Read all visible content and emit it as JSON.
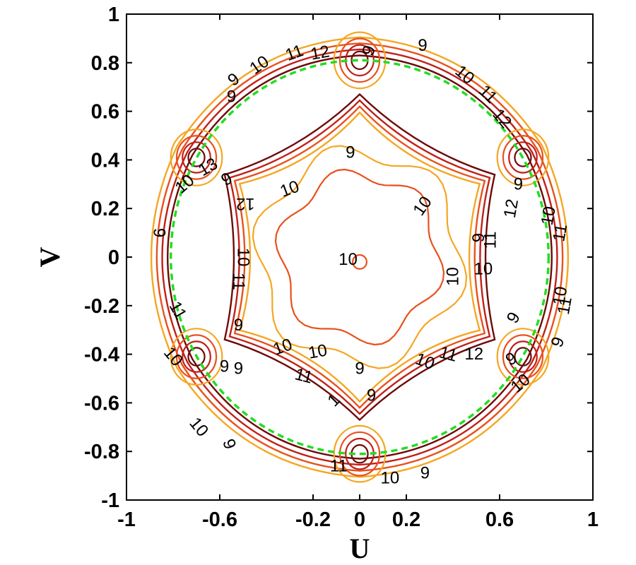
{
  "chart_data": {
    "type": "contour",
    "title": "",
    "xlabel": "U",
    "ylabel": "V",
    "xlim": [
      -1,
      1
    ],
    "ylim": [
      -1,
      1
    ],
    "x_ticks": [
      {
        "value": -1,
        "label": "-1"
      },
      {
        "value": -0.6,
        "label": "-0.6"
      },
      {
        "value": -0.2,
        "label": "-0.2"
      },
      {
        "value": 0,
        "label": "0"
      },
      {
        "value": 0.2,
        "label": "0.2"
      },
      {
        "value": 0.6,
        "label": "0.6"
      },
      {
        "value": 1,
        "label": "1"
      }
    ],
    "y_ticks": [
      {
        "value": -1,
        "label": "-1"
      },
      {
        "value": -0.8,
        "label": "-0.8"
      },
      {
        "value": -0.6,
        "label": "-0.6"
      },
      {
        "value": -0.4,
        "label": "-0.4"
      },
      {
        "value": -0.2,
        "label": "-0.2"
      },
      {
        "value": 0,
        "label": "0"
      },
      {
        "value": 0.2,
        "label": "0.2"
      },
      {
        "value": 0.4,
        "label": "0.4"
      },
      {
        "value": 0.6,
        "label": "0.6"
      },
      {
        "value": 0.8,
        "label": "0.8"
      },
      {
        "value": 1,
        "label": "1"
      }
    ],
    "grid": false,
    "legend": "none",
    "contour_levels": [
      {
        "level": 9,
        "color": "#f5a623"
      },
      {
        "level": 10,
        "color": "#e8511c"
      },
      {
        "level": 11,
        "color": "#c0201a"
      },
      {
        "level": 12,
        "color": "#6e0a0a"
      }
    ],
    "visible_region_circle": {
      "center": [
        0,
        0
      ],
      "radius": 0.81,
      "color": "#22dd22",
      "style": "dashed"
    },
    "hexagon_vertices_uv": [
      [
        0,
        0.81
      ],
      [
        0.7,
        0.41
      ],
      [
        0.7,
        -0.41
      ],
      [
        0,
        -0.81
      ],
      [
        -0.7,
        -0.41
      ],
      [
        -0.7,
        0.41
      ]
    ],
    "inner_contours": [
      {
        "level": 9,
        "max_radius": 0.47
      },
      {
        "level": 10,
        "max_radius": 0.37
      },
      {
        "level": 10,
        "center_closed_loop_radius": 0.03
      }
    ],
    "contour_labels": [
      {
        "text": "9",
        "u": 0.27,
        "v": 0.87,
        "rot": 0
      },
      {
        "text": "10",
        "u": -0.43,
        "v": 0.79,
        "rot": -35
      },
      {
        "text": "11",
        "u": -0.28,
        "v": 0.84,
        "rot": -20
      },
      {
        "text": "12",
        "u": -0.17,
        "v": 0.84,
        "rot": -10
      },
      {
        "text": "9",
        "u": -0.54,
        "v": 0.73,
        "rot": -38
      },
      {
        "text": "9",
        "u": 0.04,
        "v": 0.85,
        "rot": -70
      },
      {
        "text": "10",
        "u": 0.45,
        "v": 0.75,
        "rot": 40
      },
      {
        "text": "11",
        "u": 0.55,
        "v": 0.67,
        "rot": 45
      },
      {
        "text": "12",
        "u": 0.61,
        "v": 0.57,
        "rot": 50
      },
      {
        "text": "9",
        "u": -0.04,
        "v": 0.43,
        "rot": 0
      },
      {
        "text": "10",
        "u": -0.3,
        "v": 0.28,
        "rot": -20
      },
      {
        "text": "10",
        "u": 0.27,
        "v": 0.21,
        "rot": -55
      },
      {
        "text": "10",
        "u": -0.05,
        "v": -0.01,
        "rot": 0
      },
      {
        "text": "10",
        "u": -0.75,
        "v": 0.3,
        "rot": -40
      },
      {
        "text": "12",
        "u": -0.49,
        "v": 0.22,
        "rot": 180
      },
      {
        "text": "9",
        "u": -0.57,
        "v": 0.32,
        "rot": -30
      },
      {
        "text": "9",
        "u": -0.86,
        "v": 0.1,
        "rot": 90
      },
      {
        "text": "10",
        "u": -0.5,
        "v": 0.0,
        "rot": 90
      },
      {
        "text": "11",
        "u": -0.52,
        "v": -0.1,
        "rot": 90
      },
      {
        "text": "11",
        "u": -0.78,
        "v": -0.22,
        "rot": 60
      },
      {
        "text": "9",
        "u": -0.52,
        "v": -0.28,
        "rot": 0
      },
      {
        "text": "10",
        "u": -0.33,
        "v": -0.37,
        "rot": -20
      },
      {
        "text": "10",
        "u": -0.18,
        "v": -0.39,
        "rot": -10
      },
      {
        "text": "11",
        "u": -0.24,
        "v": -0.49,
        "rot": 15
      },
      {
        "text": "10",
        "u": -0.8,
        "v": -0.41,
        "rot": 50
      },
      {
        "text": "9",
        "u": -0.58,
        "v": -0.45,
        "rot": 0
      },
      {
        "text": "9",
        "u": -0.52,
        "v": -0.46,
        "rot": 0
      },
      {
        "text": "10",
        "u": -0.69,
        "v": -0.7,
        "rot": 50
      },
      {
        "text": "9",
        "u": -0.56,
        "v": -0.77,
        "rot": 70
      },
      {
        "text": "9",
        "u": 0.0,
        "v": -0.46,
        "rot": 0
      },
      {
        "text": "9",
        "u": 0.05,
        "v": -0.57,
        "rot": 0
      },
      {
        "text": "1",
        "u": -0.11,
        "v": -0.59,
        "rot": -45
      },
      {
        "text": "10",
        "u": 0.28,
        "v": -0.43,
        "rot": 20
      },
      {
        "text": "11",
        "u": 0.38,
        "v": -0.4,
        "rot": 15
      },
      {
        "text": "12",
        "u": 0.49,
        "v": -0.4,
        "rot": 0
      },
      {
        "text": "9",
        "u": 0.66,
        "v": -0.25,
        "rot": -60
      },
      {
        "text": "10",
        "u": 0.53,
        "v": -0.05,
        "rot": 0
      },
      {
        "text": "10",
        "u": 0.4,
        "v": -0.08,
        "rot": -90
      },
      {
        "text": "9",
        "u": 0.51,
        "v": 0.08,
        "rot": -90
      },
      {
        "text": "11",
        "u": 0.56,
        "v": 0.07,
        "rot": -90
      },
      {
        "text": "12",
        "u": 0.65,
        "v": 0.2,
        "rot": -80
      },
      {
        "text": "9",
        "u": 0.68,
        "v": 0.3,
        "rot": 0
      },
      {
        "text": "10",
        "u": 0.81,
        "v": 0.17,
        "rot": -80
      },
      {
        "text": "11",
        "u": 0.86,
        "v": 0.1,
        "rot": -80
      },
      {
        "text": "10",
        "u": 0.86,
        "v": -0.16,
        "rot": -80
      },
      {
        "text": "11",
        "u": 0.88,
        "v": -0.2,
        "rot": -80
      },
      {
        "text": "9",
        "u": 0.85,
        "v": -0.35,
        "rot": -70
      },
      {
        "text": "10",
        "u": 0.69,
        "v": -0.52,
        "rot": -40
      },
      {
        "text": "9",
        "u": 0.65,
        "v": -0.42,
        "rot": -30
      },
      {
        "text": "9",
        "u": 0.28,
        "v": -0.89,
        "rot": 0
      },
      {
        "text": "10",
        "u": 0.13,
        "v": -0.91,
        "rot": 0
      },
      {
        "text": "11",
        "u": -0.09,
        "v": -0.86,
        "rot": 0
      },
      {
        "text": "9",
        "u": -0.55,
        "v": 0.66,
        "rot": 0
      },
      {
        "text": "13",
        "u": -0.65,
        "v": 0.37,
        "rot": -30
      }
    ]
  }
}
